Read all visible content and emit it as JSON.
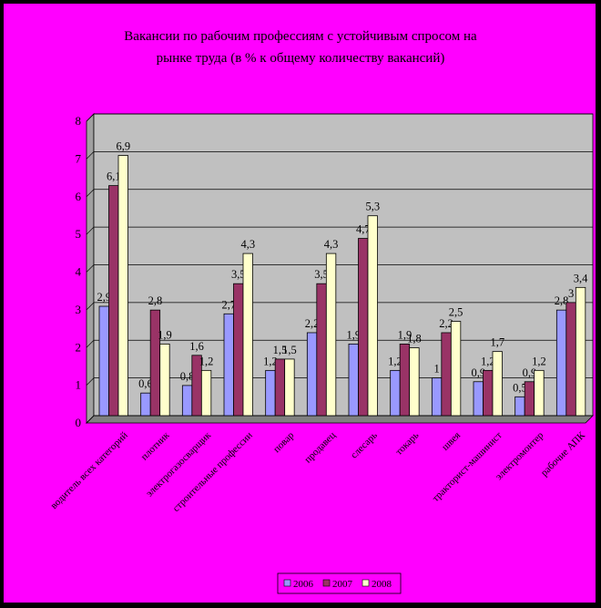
{
  "chart_data": {
    "type": "bar",
    "title_lines": [
      "Вакансии по рабочим профессиям с устойчивым спросом на",
      "рынке труда (в % к общему количеству вакансий)"
    ],
    "categories": [
      "водитель всех категорий",
      "плотник",
      "электрогазосварщик",
      "строительные профессии",
      "повар",
      "продавец",
      "слесарь",
      "токарь",
      "швея",
      "тракторист-машинист",
      "электромонтер",
      "рабочие АПК"
    ],
    "series": [
      {
        "name": "2006",
        "color": "#9999ff",
        "values": [
          2.9,
          0.6,
          0.8,
          2.7,
          1.2,
          2.2,
          1.9,
          1.2,
          1,
          0.9,
          0.5,
          2.8
        ],
        "labels": [
          "2,9",
          "0,6",
          "0,8",
          "2,7",
          "1,2",
          "2,2",
          "1,9",
          "1,2",
          "1",
          "0,9",
          "0,5",
          "2,8"
        ]
      },
      {
        "name": "2007",
        "color": "#993366",
        "values": [
          6.1,
          2.8,
          1.6,
          3.5,
          1.5,
          3.5,
          4.7,
          1.9,
          2.2,
          1.2,
          0.9,
          3
        ],
        "labels": [
          "6,1",
          "2,8",
          "1,6",
          "3,5",
          "1,5",
          "3,5",
          "4,7",
          "1,9",
          "2,2",
          "1,2",
          "0,9",
          "3"
        ]
      },
      {
        "name": "2008",
        "color": "#ffffcc",
        "values": [
          6.9,
          1.9,
          1.2,
          4.3,
          1.5,
          4.3,
          5.3,
          1.8,
          2.5,
          1.7,
          1.2,
          3.4
        ],
        "labels": [
          "6,9",
          "1,9",
          "1,2",
          "4,3",
          "1,5",
          "4,3",
          "5,3",
          "1,8",
          "2,5",
          "1,7",
          "1,2",
          "3,4"
        ]
      }
    ],
    "y_ticks": [
      "0",
      "1",
      "2",
      "3",
      "4",
      "5",
      "6",
      "7",
      "8"
    ],
    "ylim": [
      0,
      8
    ],
    "grid": true,
    "plot_background": "#c0c0c0",
    "page_background": "#ff00ff",
    "legend_position": "bottom-center"
  }
}
